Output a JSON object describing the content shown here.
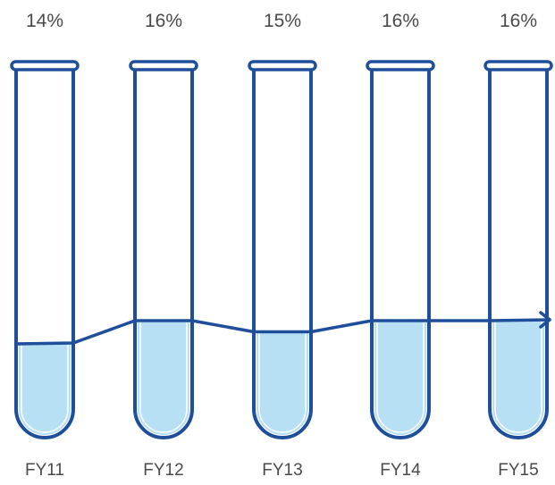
{
  "chart_data": {
    "type": "bar",
    "categories": [
      "FY11",
      "FY12",
      "FY13",
      "FY14",
      "FY15"
    ],
    "values": [
      14,
      16,
      15,
      16,
      16
    ],
    "value_labels": [
      "14%",
      "16%",
      "15%",
      "16%",
      "16%"
    ],
    "title": "",
    "xlabel": "",
    "ylabel": "",
    "grid": false,
    "legend": "none",
    "colors": {
      "tube_outline": "#1f4e9a",
      "liquid_fill": "#b7e0f5",
      "trend_line": "#1f4e9a",
      "label_text": "#4a4a4a"
    }
  }
}
